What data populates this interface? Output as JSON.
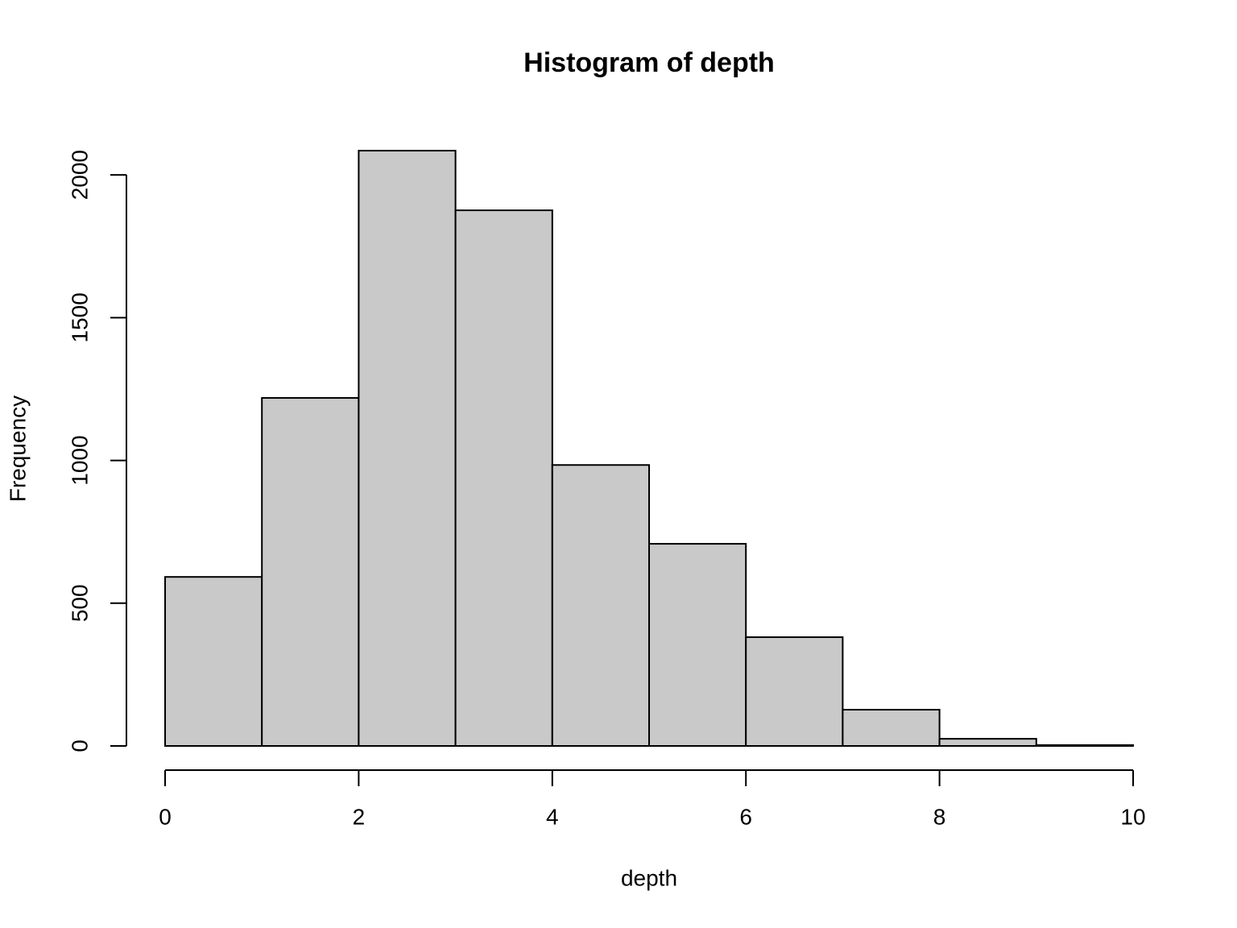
{
  "chart_data": {
    "type": "histogram",
    "title": "Histogram of depth",
    "x_label": "depth",
    "y_label": "Frequency",
    "bins": [
      0,
      1,
      2,
      3,
      4,
      5,
      6,
      7,
      8,
      9,
      10
    ],
    "values": [
      592,
      1219,
      2085,
      1876,
      984,
      708,
      381,
      127,
      25,
      3
    ],
    "color": "#c9c9c9",
    "xlim": [
      0,
      10
    ],
    "xticks": [
      0,
      2,
      4,
      6,
      8,
      10
    ],
    "ylim": [
      0,
      2085
    ],
    "yticks": [
      0,
      500,
      1000,
      1500,
      2000
    ]
  }
}
